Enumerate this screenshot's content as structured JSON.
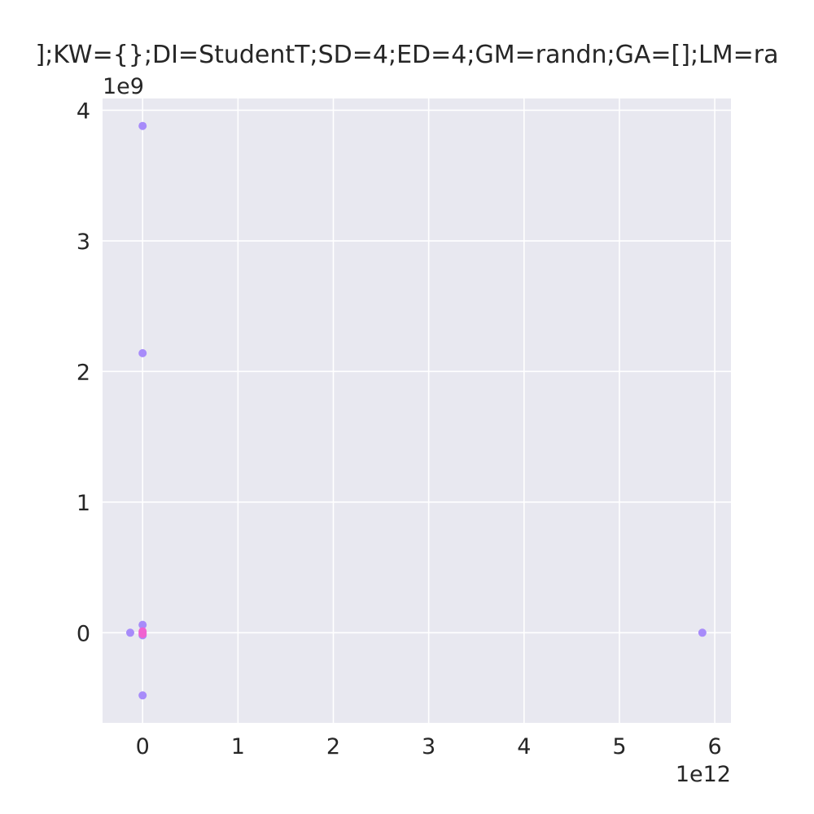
{
  "chart_data": {
    "type": "scatter",
    "title": "];KW={};DI=StudentT;SD=4;ED=4;GM=randn;GA=[];LM=ra",
    "xlabel": "",
    "ylabel": "",
    "x_offset_label": "1e12",
    "y_offset_label": "1e9",
    "xlim": [
      -0.42,
      6.17
    ],
    "ylim": [
      -0.69,
      4.09
    ],
    "x_ticks": [
      0,
      1,
      2,
      3,
      4,
      5,
      6
    ],
    "y_ticks": [
      0,
      1,
      2,
      3,
      4
    ],
    "grid": true,
    "background": "#e8e8f0",
    "grid_color": "#ffffff",
    "series": [
      {
        "color": "#a78bfa",
        "points": [
          {
            "x": 0.0,
            "y": 3.88
          },
          {
            "x": 0.0,
            "y": 2.14
          },
          {
            "x": 0.0,
            "y": 0.06
          },
          {
            "x": -0.13,
            "y": 0.0
          },
          {
            "x": 0.0,
            "y": 0.0
          },
          {
            "x": 0.0,
            "y": -0.02
          },
          {
            "x": 0.0,
            "y": -0.48
          },
          {
            "x": 5.87,
            "y": 0.0
          }
        ]
      },
      {
        "color": "#f062d0",
        "points": [
          {
            "x": 0.0,
            "y": 0.01
          },
          {
            "x": 0.0,
            "y": -0.01
          }
        ]
      }
    ]
  }
}
